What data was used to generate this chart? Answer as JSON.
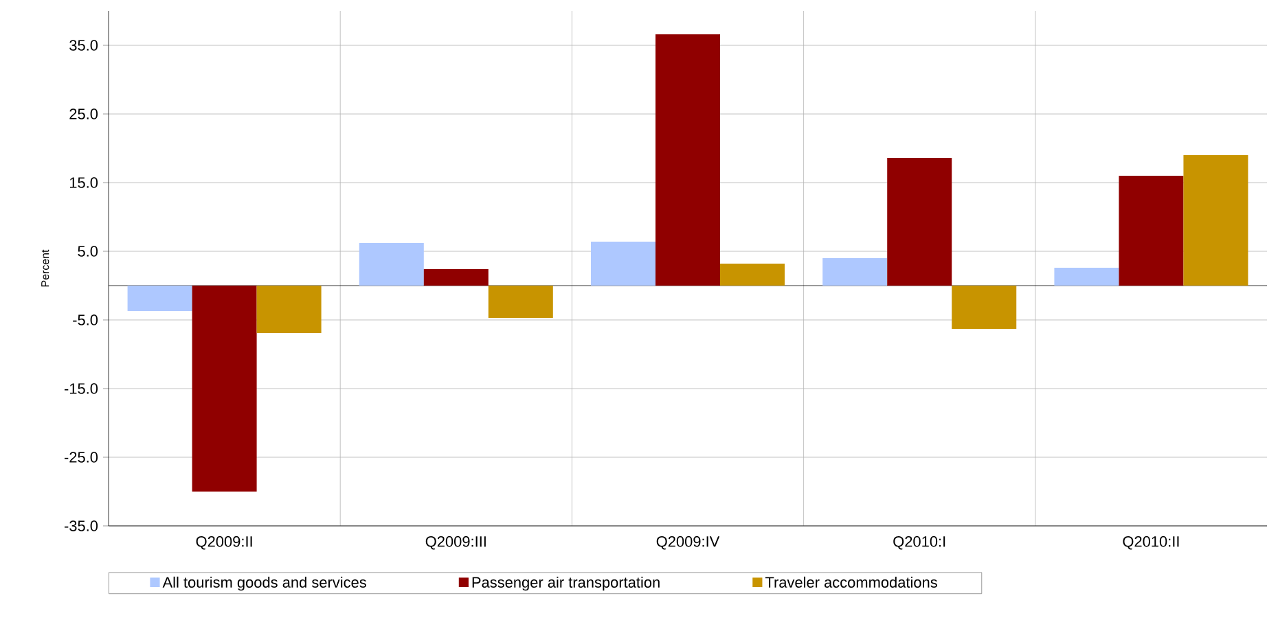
{
  "chart_data": {
    "type": "bar",
    "ylabel": "Percent",
    "categories": [
      "Q2009:II",
      "Q2009:III",
      "Q2009:IV",
      "Q2010:I",
      "Q2010:II"
    ],
    "series": [
      {
        "name": "All tourism goods and services",
        "color": "#aec8ff",
        "values": [
          -3.7,
          6.2,
          6.4,
          4.0,
          2.6
        ]
      },
      {
        "name": "Passenger air transportation",
        "color": "#900000",
        "values": [
          -30.0,
          2.4,
          36.6,
          18.6,
          16.0
        ]
      },
      {
        "name": "Traveler accommodations",
        "color": "#c89400",
        "values": [
          -6.9,
          -4.7,
          3.2,
          -6.3,
          19.0
        ]
      }
    ],
    "ylim": [
      -35,
      40
    ],
    "yticks": [
      {
        "value": -35,
        "label": "-35.0"
      },
      {
        "value": -25,
        "label": "-25.0"
      },
      {
        "value": -15,
        "label": "-15.0"
      },
      {
        "value": -5,
        "label": "-5.0"
      },
      {
        "value": 5,
        "label": "5.0"
      },
      {
        "value": 15,
        "label": "15.0"
      },
      {
        "value": 25,
        "label": "25.0"
      },
      {
        "value": 35,
        "label": "35.0"
      }
    ],
    "grid": true,
    "legend": "bottom"
  }
}
